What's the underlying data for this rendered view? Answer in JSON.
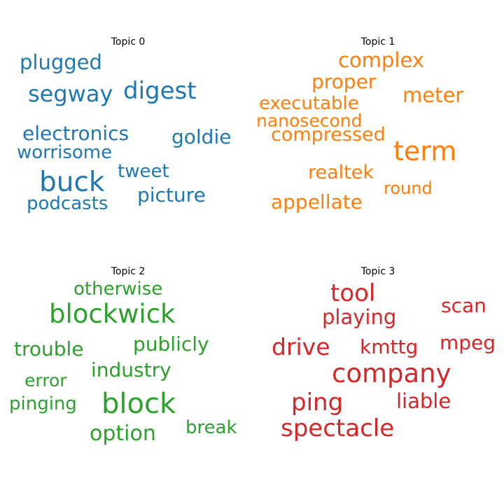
{
  "chart_data": [
    {
      "type": "wordcloud",
      "title": "Topic 0",
      "color": "#1f77b4",
      "words": [
        "plugged",
        "segway",
        "digest",
        "electronics",
        "goldie",
        "worrisome",
        "tweet",
        "buck",
        "picture",
        "podcasts"
      ]
    },
    {
      "type": "wordcloud",
      "title": "Topic 1",
      "color": "#ff7f0e",
      "words": [
        "complex",
        "proper",
        "meter",
        "executable",
        "nanosecond",
        "compressed",
        "term",
        "realtek",
        "round",
        "appellate"
      ]
    },
    {
      "type": "wordcloud",
      "title": "Topic 2",
      "color": "#2ca02c",
      "words": [
        "otherwise",
        "blockwick",
        "trouble",
        "publicly",
        "industry",
        "error",
        "pinging",
        "block",
        "option",
        "break"
      ]
    },
    {
      "type": "wordcloud",
      "title": "Topic 3",
      "color": "#d62728",
      "words": [
        "tool",
        "scan",
        "playing",
        "drive",
        "kmttg",
        "mpeg",
        "company",
        "ping",
        "liable",
        "spectacle"
      ]
    }
  ]
}
